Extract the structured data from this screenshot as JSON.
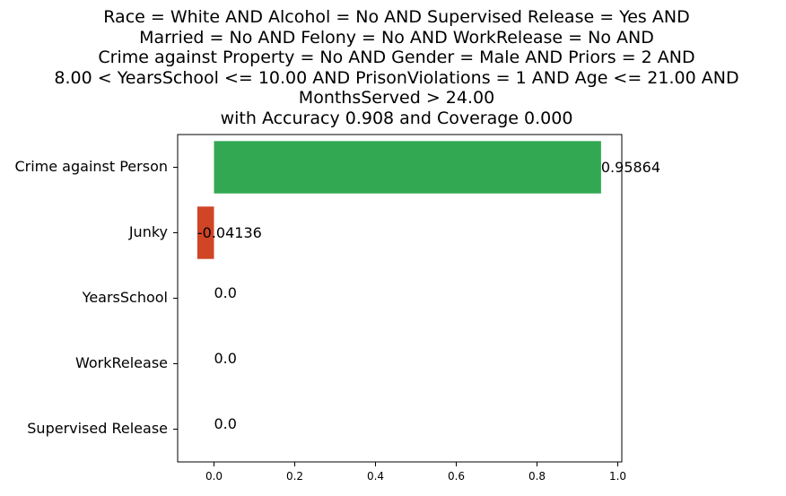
{
  "chart_data": {
    "type": "bar",
    "orientation": "horizontal",
    "title_lines": [
      "Race = White AND Alcohol = No AND Supervised Release = Yes AND",
      "Married = No AND Felony = No AND WorkRelease = No AND",
      "Crime against Property = No AND Gender = Male AND Priors = 2 AND",
      "8.00 < YearsSchool <= 10.00 AND PrisonViolations = 1 AND Age <= 21.00 AND",
      "MonthsServed > 24.00",
      "with Accuracy 0.908 and Coverage 0.000"
    ],
    "categories": [
      "Crime against Person",
      "Junky",
      "YearsSchool",
      "WorkRelease",
      "Supervised Release"
    ],
    "values": [
      0.95864,
      -0.04136,
      0.0,
      0.0,
      0.0
    ],
    "value_labels": [
      "0.95864",
      "-0.04136",
      "0.0",
      "0.0",
      "0.0"
    ],
    "xlim": [
      -0.09,
      1.01
    ],
    "xticks": [
      0.0,
      0.2,
      0.4,
      0.6,
      0.8,
      1.0
    ],
    "xtick_labels": [
      "0.0",
      "0.2",
      "0.4",
      "0.6",
      "0.8",
      "1.0"
    ],
    "xlabel": "",
    "ylabel": "",
    "grid": false,
    "colors": {
      "positive": "#33a852",
      "negative": "#d04526",
      "axis": "#000000",
      "text": "#000000"
    }
  }
}
